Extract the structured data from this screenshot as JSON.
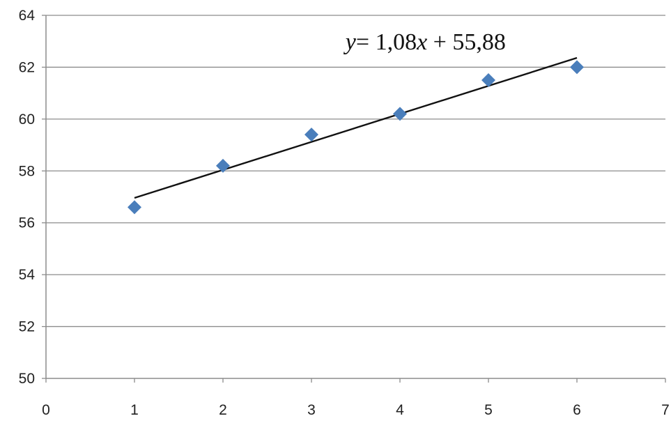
{
  "chart_data": {
    "type": "scatter",
    "title": "",
    "xlabel": "",
    "ylabel": "",
    "xlim": [
      0,
      7
    ],
    "ylim": [
      50,
      64
    ],
    "x_ticks": [
      0,
      1,
      2,
      3,
      4,
      5,
      6,
      7
    ],
    "y_ticks": [
      50,
      52,
      54,
      56,
      58,
      60,
      62,
      64
    ],
    "grid": "horizontal",
    "series": [
      {
        "x": [
          1,
          2,
          3,
          4,
          5,
          6
        ],
        "y": [
          56.6,
          58.2,
          59.4,
          60.2,
          61.5,
          62.0
        ],
        "color": "#4a7ebb",
        "marker": "diamond"
      }
    ],
    "trendline": {
      "slope": 1.08,
      "intercept": 55.88,
      "x_range": [
        1,
        6
      ],
      "color": "#111111"
    },
    "annotation": {
      "y_var": "y",
      "equals": "= 1,08",
      "x_var": "x",
      "rest": " + 55,88",
      "anchor_x": 3.4,
      "anchor_y": 63.0
    }
  }
}
